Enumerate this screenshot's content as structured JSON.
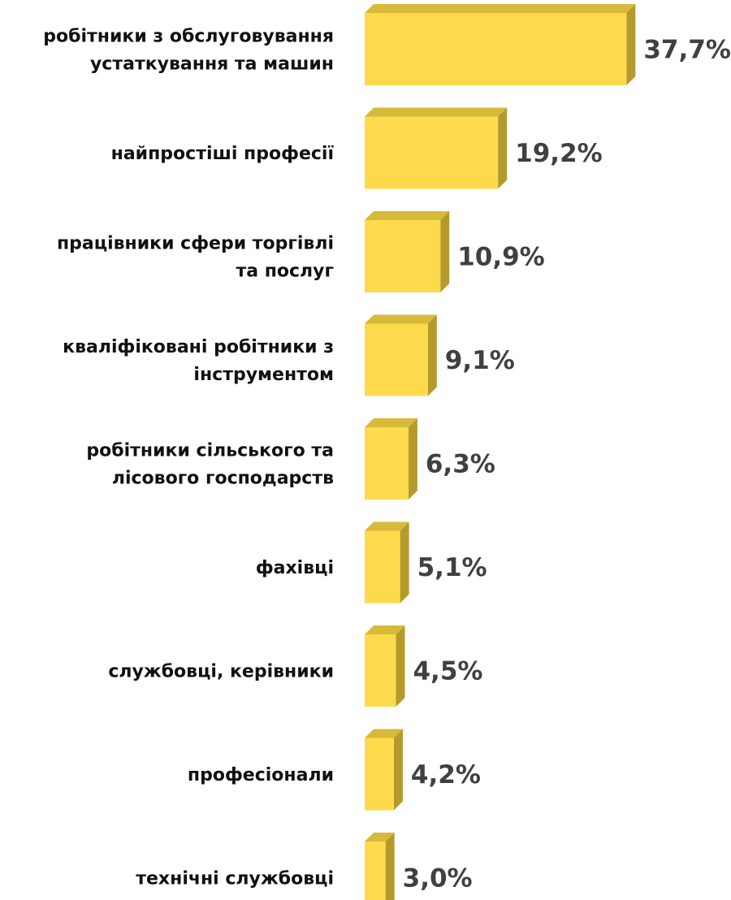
{
  "chart_data": {
    "type": "bar",
    "orientation": "horizontal",
    "style": "3d",
    "unit": "%",
    "categories": [
      [
        "робітники з обслуговування",
        "устаткування та машин"
      ],
      [
        "найпростіші професії"
      ],
      [
        "працівники сфери торгівлі",
        "та послуг"
      ],
      [
        "кваліфіковані робітники з",
        "інструментом"
      ],
      [
        "робітники сільського та",
        "лісового господарств"
      ],
      [
        "фахівці"
      ],
      [
        "службовці, керівники"
      ],
      [
        "професіонали"
      ],
      [
        "технічні службовці"
      ]
    ],
    "values": [
      37.7,
      19.2,
      10.9,
      9.1,
      6.3,
      5.1,
      4.5,
      4.2,
      3.0
    ],
    "value_labels": [
      "37,7%",
      "19,2%",
      "10,9%",
      "9,1%",
      "6,3%",
      "5,1%",
      "4,5%",
      "4,2%",
      "3,0%"
    ],
    "grid": false,
    "legend": false,
    "colors": {
      "bar_front": "#FDDA4C",
      "bar_side": "#B59A2B",
      "bar_top": "#D8BA3A",
      "value_text": "#404040",
      "category_text": "#111111"
    }
  }
}
